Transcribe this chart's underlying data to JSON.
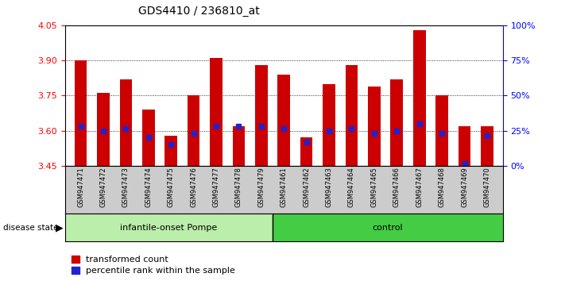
{
  "title": "GDS4410 / 236810_at",
  "samples": [
    "GSM947471",
    "GSM947472",
    "GSM947473",
    "GSM947474",
    "GSM947475",
    "GSM947476",
    "GSM947477",
    "GSM947478",
    "GSM947479",
    "GSM947461",
    "GSM947462",
    "GSM947463",
    "GSM947464",
    "GSM947465",
    "GSM947466",
    "GSM947467",
    "GSM947468",
    "GSM947469",
    "GSM947470"
  ],
  "red_values": [
    3.9,
    3.76,
    3.82,
    3.69,
    3.58,
    3.75,
    3.91,
    3.62,
    3.88,
    3.84,
    3.57,
    3.8,
    3.88,
    3.79,
    3.82,
    4.03,
    3.75,
    3.62,
    3.62
  ],
  "blue_values": [
    3.62,
    3.6,
    3.61,
    3.57,
    3.54,
    3.59,
    3.62,
    3.62,
    3.62,
    3.61,
    3.55,
    3.6,
    3.61,
    3.59,
    3.6,
    3.63,
    3.59,
    3.46,
    3.58
  ],
  "y_min": 3.45,
  "y_max": 4.05,
  "y_ticks_left": [
    3.45,
    3.6,
    3.75,
    3.9,
    4.05
  ],
  "y_ticks_right_vals": [
    3.45,
    3.6,
    3.75,
    3.9,
    4.05
  ],
  "y_ticks_right_labels": [
    "0%",
    "25%",
    "50%",
    "75%",
    "100%"
  ],
  "group1_label": "infantile-onset Pompe",
  "group2_label": "control",
  "group1_count": 9,
  "group2_count": 10,
  "bar_color": "#cc0000",
  "blue_color": "#2222cc",
  "bar_width": 0.55,
  "bg_plot": "#ffffff",
  "bg_samples": "#cccccc",
  "bg_group1": "#bbeeaa",
  "bg_group2": "#44cc44",
  "legend_red_label": "transformed count",
  "legend_blue_label": "percentile rank within the sample",
  "disease_state_label": "disease state"
}
